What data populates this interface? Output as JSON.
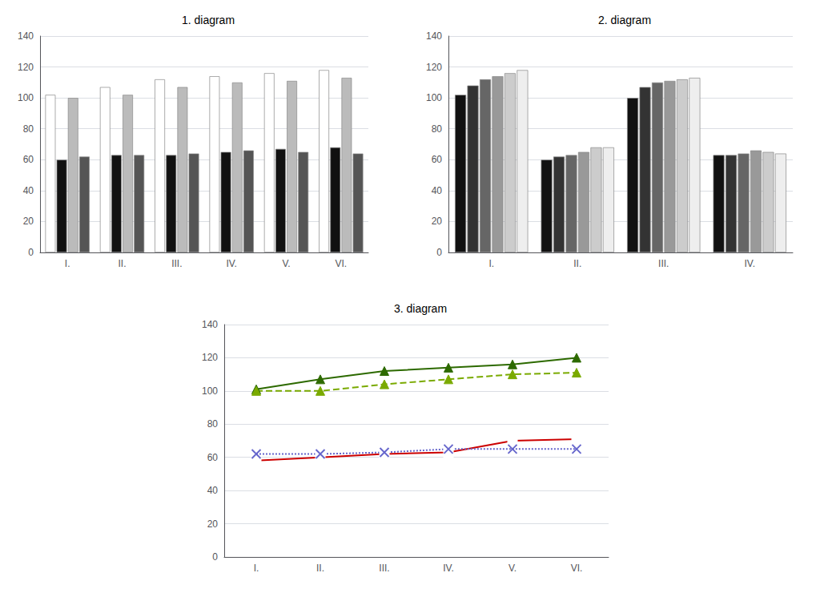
{
  "chart_data": [
    {
      "type": "bar",
      "title": "1. diagram",
      "categories": [
        "I.",
        "II.",
        "III.",
        "IV.",
        "V.",
        "VI."
      ],
      "series": [
        {
          "values": [
            102,
            107,
            112,
            114,
            116,
            118
          ],
          "color": "#ffffff"
        },
        {
          "values": [
            60,
            63,
            63,
            65,
            67,
            68
          ],
          "color": "#111111"
        },
        {
          "values": [
            100,
            102,
            107,
            110,
            111,
            113
          ],
          "color": "#bbbbbb"
        },
        {
          "values": [
            62,
            63,
            64,
            66,
            65,
            64
          ],
          "color": "#555555"
        }
      ],
      "ylim": [
        0,
        140
      ],
      "yticks": [
        0,
        20,
        40,
        60,
        80,
        100,
        120,
        140
      ],
      "grid": true
    },
    {
      "type": "bar",
      "title": "2. diagram",
      "categories": [
        "I.",
        "II.",
        "III.",
        "IV."
      ],
      "series": [
        {
          "values": [
            102,
            60,
            100,
            63
          ],
          "color": "#111111"
        },
        {
          "values": [
            108,
            62,
            107,
            63
          ],
          "color": "#333333"
        },
        {
          "values": [
            112,
            63,
            110,
            64
          ],
          "color": "#666666"
        },
        {
          "values": [
            114,
            65,
            111,
            66
          ],
          "color": "#999999"
        },
        {
          "values": [
            116,
            68,
            112,
            65
          ],
          "color": "#cccccc"
        },
        {
          "values": [
            118,
            68,
            113,
            64
          ],
          "color": "#eeeeee"
        }
      ],
      "ylim": [
        0,
        140
      ],
      "yticks": [
        0,
        20,
        40,
        60,
        80,
        100,
        120,
        140
      ],
      "grid": true
    },
    {
      "type": "line",
      "title": "3. diagram",
      "categories": [
        "I.",
        "II.",
        "III.",
        "IV.",
        "V.",
        "VI."
      ],
      "series": [
        {
          "values": [
            101,
            107,
            112,
            114,
            116,
            120
          ],
          "color": "#2d6a00",
          "marker": "triangle",
          "line_style": "solid"
        },
        {
          "values": [
            100,
            100,
            104,
            107,
            110,
            111
          ],
          "color": "#7aaa00",
          "marker": "triangle",
          "line_style": "dashed"
        },
        {
          "values": [
            58,
            60,
            62,
            63,
            70,
            71
          ],
          "color": "#cc0000",
          "marker": "open_square",
          "line_style": "solid"
        },
        {
          "values": [
            62,
            62,
            63,
            65,
            65,
            65
          ],
          "color": "#6666cc",
          "marker": "x",
          "line_style": "dotted"
        }
      ],
      "ylim": [
        0,
        140
      ],
      "yticks": [
        0,
        20,
        40,
        60,
        80,
        100,
        120,
        140
      ],
      "grid": true
    }
  ]
}
